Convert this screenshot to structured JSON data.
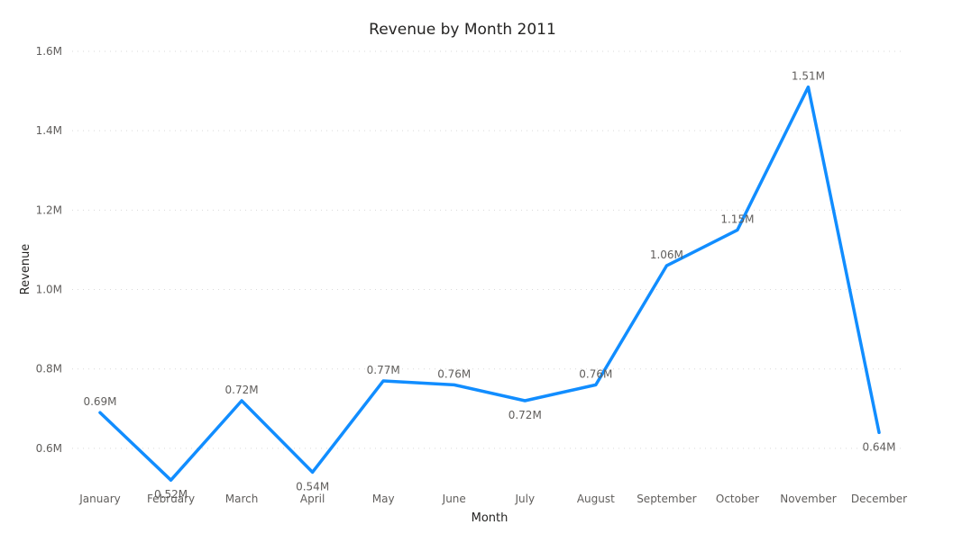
{
  "chart_data": {
    "type": "line",
    "title": "Revenue by Month 2011",
    "xlabel": "Month",
    "ylabel": "Revenue",
    "categories": [
      "January",
      "February",
      "March",
      "April",
      "May",
      "June",
      "July",
      "August",
      "September",
      "October",
      "November",
      "December"
    ],
    "series": [
      {
        "color": "#118dff",
        "values": [
          0.69,
          0.52,
          0.72,
          0.54,
          0.77,
          0.76,
          0.72,
          0.76,
          1.06,
          1.15,
          1.51,
          0.64
        ],
        "data_labels": [
          "0.69M",
          "0.52M",
          "0.72M",
          "0.54M",
          "0.77M",
          "0.76M",
          "0.72M",
          "0.76M",
          "1.06M",
          "1.15M",
          "1.51M",
          "0.64M"
        ]
      }
    ],
    "unit": "M",
    "ylim": [
      0.5,
      1.6
    ],
    "y_ticks": [
      0.6,
      0.8,
      1.0,
      1.2,
      1.4,
      1.6
    ],
    "y_tick_labels": [
      "0.6M",
      "0.8M",
      "1.0M",
      "1.2M",
      "1.4M",
      "1.6M"
    ],
    "grid": true,
    "legend": "none"
  }
}
